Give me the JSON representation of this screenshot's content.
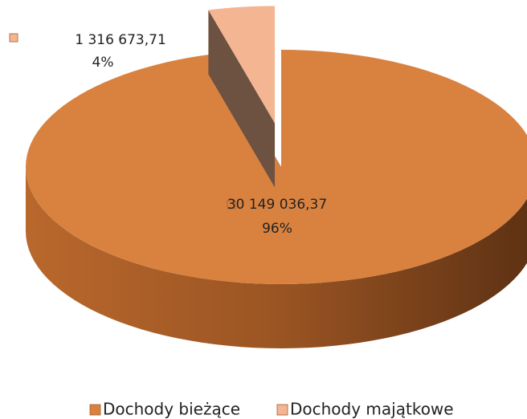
{
  "chart_data": {
    "type": "pie",
    "categories": [
      "Dochody bieżące",
      "Dochody majątkowe"
    ],
    "values": [
      30149036.37,
      1316673.71
    ],
    "value_labels": [
      "30 149 036,37",
      "1 316 673,71"
    ],
    "percent_labels": [
      "96%",
      "4%"
    ],
    "colors": [
      "#d98240",
      "#f4b592"
    ],
    "legend": "bottom"
  }
}
